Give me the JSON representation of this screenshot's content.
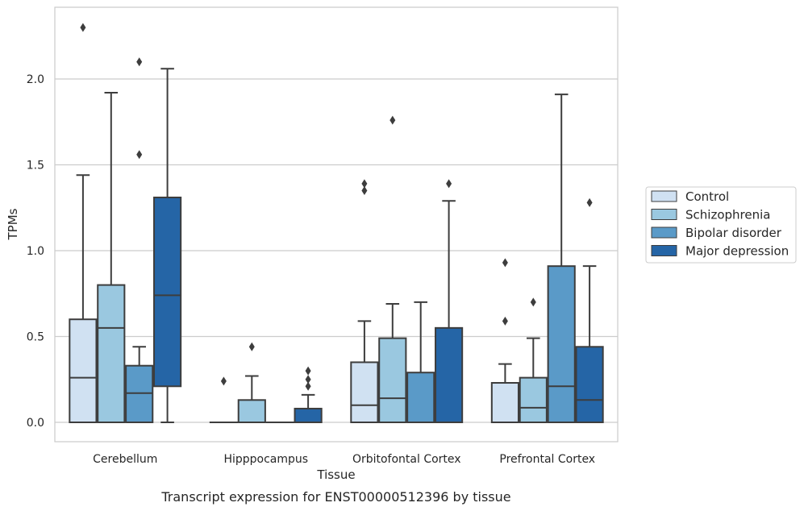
{
  "caption": "Transcript expression for ENST00000512396 by tissue",
  "chart_data": {
    "type": "box",
    "xlabel": "Tissue",
    "ylabel": "TPMs",
    "ylim": [
      -0.11,
      2.43
    ],
    "yticks": [
      "0.0",
      "0.5",
      "1.0",
      "1.5",
      "2.0"
    ],
    "ytick_values": [
      0,
      0.5,
      1.0,
      1.5,
      2.0
    ],
    "grid": "horizontal",
    "legend_position": "right",
    "categories": [
      "Cerebellum",
      "Hipppocampus",
      "Orbitofontal Cortex",
      "Prefrontal Cortex"
    ],
    "series": [
      {
        "name": "Control",
        "color": "#d0e1f2",
        "boxes": [
          {
            "whislo": 0,
            "q1": 0,
            "med": 0.26,
            "q3": 0.6,
            "whishi": 1.44,
            "fliers": [
              2.3
            ]
          },
          {
            "whislo": 0,
            "q1": 0,
            "med": 0,
            "q3": 0,
            "whishi": 0,
            "fliers": [
              0.24
            ]
          },
          {
            "whislo": 0,
            "q1": 0,
            "med": 0.1,
            "q3": 0.35,
            "whishi": 0.59,
            "fliers": [
              1.35,
              1.39
            ]
          },
          {
            "whislo": 0,
            "q1": 0,
            "med": 0,
            "q3": 0.23,
            "whishi": 0.34,
            "fliers": [
              0.59,
              0.93
            ]
          }
        ]
      },
      {
        "name": "Schizophrenia",
        "color": "#9ac8e0",
        "boxes": [
          {
            "whislo": 0,
            "q1": 0,
            "med": 0.55,
            "q3": 0.8,
            "whishi": 1.92,
            "fliers": []
          },
          {
            "whislo": 0,
            "q1": 0,
            "med": 0,
            "q3": 0.13,
            "whishi": 0.27,
            "fliers": [
              0.44
            ]
          },
          {
            "whislo": 0,
            "q1": 0,
            "med": 0.14,
            "q3": 0.49,
            "whishi": 0.69,
            "fliers": [
              1.76
            ]
          },
          {
            "whislo": 0,
            "q1": 0,
            "med": 0.085,
            "q3": 0.26,
            "whishi": 0.49,
            "fliers": [
              0.7
            ]
          }
        ]
      },
      {
        "name": "Bipolar disorder",
        "color": "#5a9ac8",
        "boxes": [
          {
            "whislo": 0,
            "q1": 0,
            "med": 0.17,
            "q3": 0.33,
            "whishi": 0.44,
            "fliers": [
              1.56,
              2.1
            ]
          },
          {
            "whislo": 0,
            "q1": 0,
            "med": 0,
            "q3": 0,
            "whishi": 0,
            "fliers": []
          },
          {
            "whislo": 0,
            "q1": 0,
            "med": 0,
            "q3": 0.29,
            "whishi": 0.7,
            "fliers": []
          },
          {
            "whislo": 0,
            "q1": 0,
            "med": 0.21,
            "q3": 0.91,
            "whishi": 1.91,
            "fliers": []
          }
        ]
      },
      {
        "name": "Major depression",
        "color": "#2565a6",
        "boxes": [
          {
            "whislo": 0,
            "q1": 0.21,
            "med": 0.74,
            "q3": 1.31,
            "whishi": 2.06,
            "fliers": []
          },
          {
            "whislo": 0,
            "q1": 0,
            "med": 0,
            "q3": 0.08,
            "whishi": 0.16,
            "fliers": [
              0.21,
              0.25,
              0.3
            ]
          },
          {
            "whislo": 0,
            "q1": 0,
            "med": 0,
            "q3": 0.55,
            "whishi": 1.29,
            "fliers": [
              1.39
            ]
          },
          {
            "whislo": 0,
            "q1": 0,
            "med": 0.13,
            "q3": 0.44,
            "whishi": 0.91,
            "fliers": [
              1.28
            ]
          }
        ]
      }
    ]
  }
}
